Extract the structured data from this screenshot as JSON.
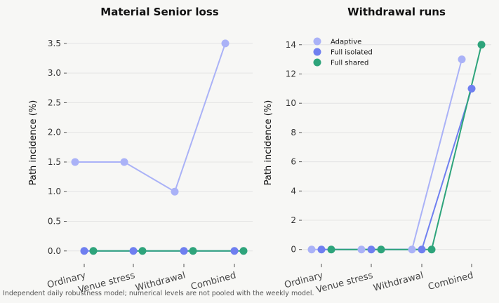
{
  "colors": {
    "Adaptive": "#aab2f7",
    "Full isolated": "#6f7ff0",
    "Full shared": "#2ea47b",
    "background": "#f7f7f5"
  },
  "footnote": "Independent daily robustness model; numerical levels are not pooled with the weekly model.",
  "chart_data": [
    {
      "type": "line",
      "title": "Material Senior loss",
      "ylabel": "Path incidence (%)",
      "xlabel": "",
      "categories": [
        "Ordinary",
        "Venue stress",
        "Withdrawal",
        "Combined"
      ],
      "ylim": [
        -0.05,
        3.7
      ],
      "yticks": [
        0.0,
        0.5,
        1.0,
        1.5,
        2.0,
        2.5,
        3.0,
        3.5
      ],
      "ytick_labels": [
        "0.0",
        "0.5",
        "1.0",
        "1.5",
        "2.0",
        "2.5",
        "3.0",
        "3.5"
      ],
      "grid": true,
      "legend": "none",
      "series": [
        {
          "name": "Adaptive",
          "values": [
            1.5,
            1.5,
            1.0,
            3.5
          ]
        },
        {
          "name": "Full isolated",
          "values": [
            0,
            0,
            0,
            0
          ]
        },
        {
          "name": "Full shared",
          "values": [
            0,
            0,
            0,
            0
          ]
        }
      ]
    },
    {
      "type": "line",
      "title": "Withdrawal runs",
      "ylabel": "Path incidence (%)",
      "xlabel": "",
      "categories": [
        "Ordinary",
        "Venue stress",
        "Withdrawal",
        "Combined"
      ],
      "ylim": [
        -0.3,
        14.9
      ],
      "yticks": [
        0,
        2,
        4,
        6,
        8,
        10,
        12,
        14
      ],
      "ytick_labels": [
        "0",
        "2",
        "4",
        "6",
        "8",
        "10",
        "12",
        "14"
      ],
      "grid": true,
      "legend": "top-left",
      "series": [
        {
          "name": "Adaptive",
          "values": [
            0,
            0,
            0,
            13
          ]
        },
        {
          "name": "Full isolated",
          "values": [
            0,
            0,
            0,
            11
          ]
        },
        {
          "name": "Full shared",
          "values": [
            0,
            0,
            0,
            14
          ]
        }
      ]
    }
  ]
}
